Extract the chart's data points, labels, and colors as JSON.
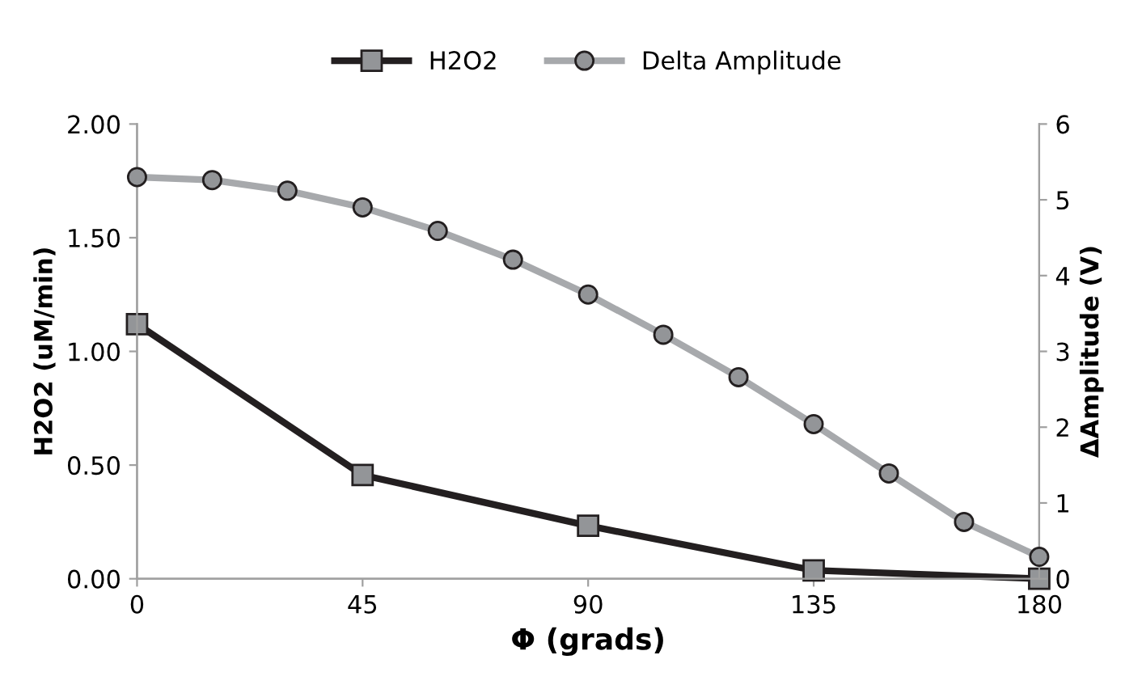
{
  "chart_data": {
    "type": "line",
    "xlabel": "Φ (grads)",
    "ylabel": "H2O2 (uM/min)",
    "y2label": "ΔAmplitude (V)",
    "xlim": [
      0,
      180
    ],
    "xticks": [
      0,
      45,
      90,
      135,
      180
    ],
    "ylim": [
      0,
      2
    ],
    "yticks": [
      {
        "value": 0,
        "label": "0.00"
      },
      {
        "value": 0.5,
        "label": "0.50"
      },
      {
        "value": 1,
        "label": "1.00"
      },
      {
        "value": 1.5,
        "label": "1.50"
      },
      {
        "value": 2,
        "label": "2.00"
      }
    ],
    "y2lim": [
      0,
      6
    ],
    "y2ticks": [
      0,
      1,
      2,
      3,
      4,
      5,
      6
    ],
    "grid": false,
    "legend": "top",
    "line_style": "solid",
    "series": [
      {
        "name": "H2O2",
        "color": "#231f20",
        "marker": "square",
        "x": [
          0,
          45,
          90,
          135,
          180
        ],
        "values": [
          1.12,
          0.456,
          0.233,
          0.037,
          0
        ]
      },
      {
        "name": "Delta Amplitude",
        "color": "#a7a9ac",
        "marker": "circle",
        "axis": "y2",
        "x": [
          0,
          15,
          30,
          45,
          60,
          75,
          90,
          105,
          120,
          135,
          150,
          165,
          180
        ],
        "values": [
          5.3,
          5.26,
          5.12,
          4.9,
          4.59,
          4.21,
          3.75,
          3.22,
          2.66,
          2.04,
          1.39,
          0.75,
          0.29
        ]
      }
    ]
  }
}
